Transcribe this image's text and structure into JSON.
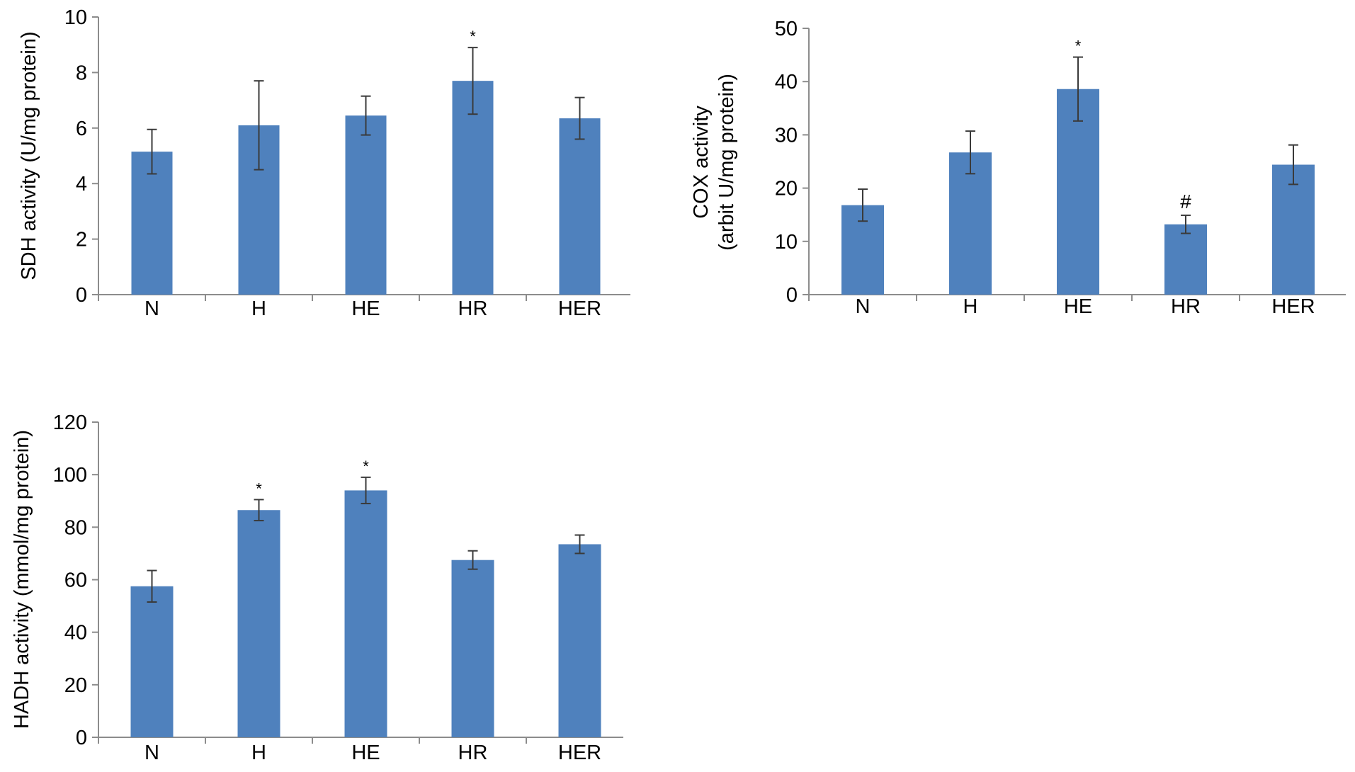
{
  "chart_data": [
    {
      "type": "bar",
      "categories": [
        "N",
        "H",
        "HE",
        "HR",
        "HER"
      ],
      "values": [
        5.15,
        6.1,
        6.45,
        7.7,
        6.35
      ],
      "errors": [
        0.8,
        1.6,
        0.7,
        1.2,
        0.75
      ],
      "annotations": [
        "",
        "",
        "",
        "*",
        ""
      ],
      "ylabel_lines": [
        "SDH activity (U/mg protein)"
      ],
      "yticks": [
        "0",
        "2",
        "4",
        "6",
        "8",
        "10"
      ],
      "ylim": [
        0,
        10
      ],
      "grid": false,
      "bar_color": "#4f81bd"
    },
    {
      "type": "bar",
      "categories": [
        "N",
        "H",
        "HE",
        "HR",
        "HER"
      ],
      "values": [
        16.8,
        26.7,
        38.6,
        13.2,
        24.4
      ],
      "errors": [
        3.0,
        4.0,
        6.0,
        1.7,
        3.7
      ],
      "annotations": [
        "",
        "",
        "*",
        "#",
        ""
      ],
      "ylabel_lines": [
        "COX activity",
        "(arbit U/mg protein)"
      ],
      "yticks": [
        "0",
        "10",
        "20",
        "30",
        "40",
        "50"
      ],
      "ylim": [
        0,
        50
      ],
      "grid": false,
      "bar_color": "#4f81bd"
    },
    {
      "type": "bar",
      "categories": [
        "N",
        "H",
        "HE",
        "HR",
        "HER"
      ],
      "values": [
        57.5,
        86.5,
        94.0,
        67.5,
        73.5
      ],
      "errors": [
        6.0,
        4.0,
        5.0,
        3.5,
        3.5
      ],
      "annotations": [
        "",
        "*",
        "*",
        "",
        ""
      ],
      "ylabel_lines": [
        "HADH activity (mmol/mg protein)"
      ],
      "yticks": [
        "0",
        "20",
        "40",
        "60",
        "80",
        "100",
        "120"
      ],
      "ylim": [
        0,
        120
      ],
      "grid": false,
      "bar_color": "#4f81bd"
    }
  ]
}
